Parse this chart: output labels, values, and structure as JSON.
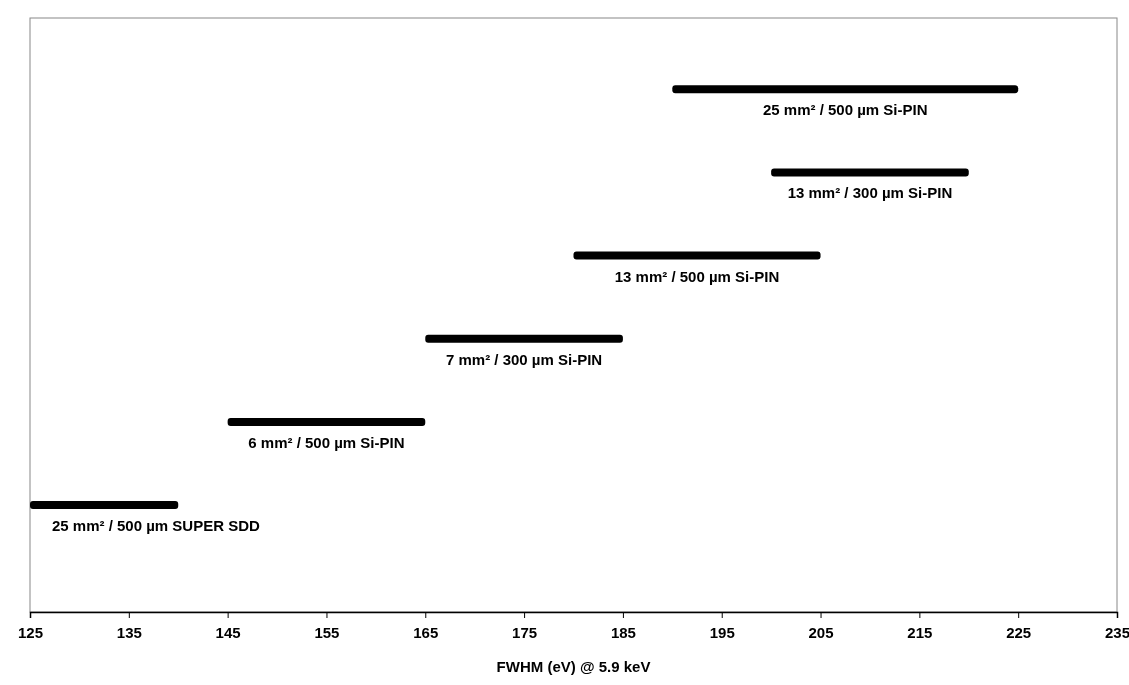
{
  "chart_data": {
    "type": "bar",
    "orientation": "horizontal",
    "xlabel": "FWHM  (eV) @ 5.9 keV",
    "categories": [
      "25 mm² / 500 µm Si-PIN",
      "13 mm² / 300 µm Si-PIN",
      "13 mm² / 500 µm Si-PIN",
      "7 mm² / 300 µm Si-PIN",
      "6 mm² / 500 µm Si-PIN",
      "25 mm² / 500 µm SUPER SDD"
    ],
    "base": [
      190,
      200,
      180,
      165,
      145,
      125
    ],
    "values": [
      35,
      20,
      25,
      20,
      20,
      15
    ],
    "color": "#000000",
    "xlim": [
      125,
      235
    ],
    "xticks": [
      125,
      135,
      145,
      155,
      165,
      175,
      185,
      195,
      205,
      215,
      225,
      235
    ],
    "grid": false
  }
}
